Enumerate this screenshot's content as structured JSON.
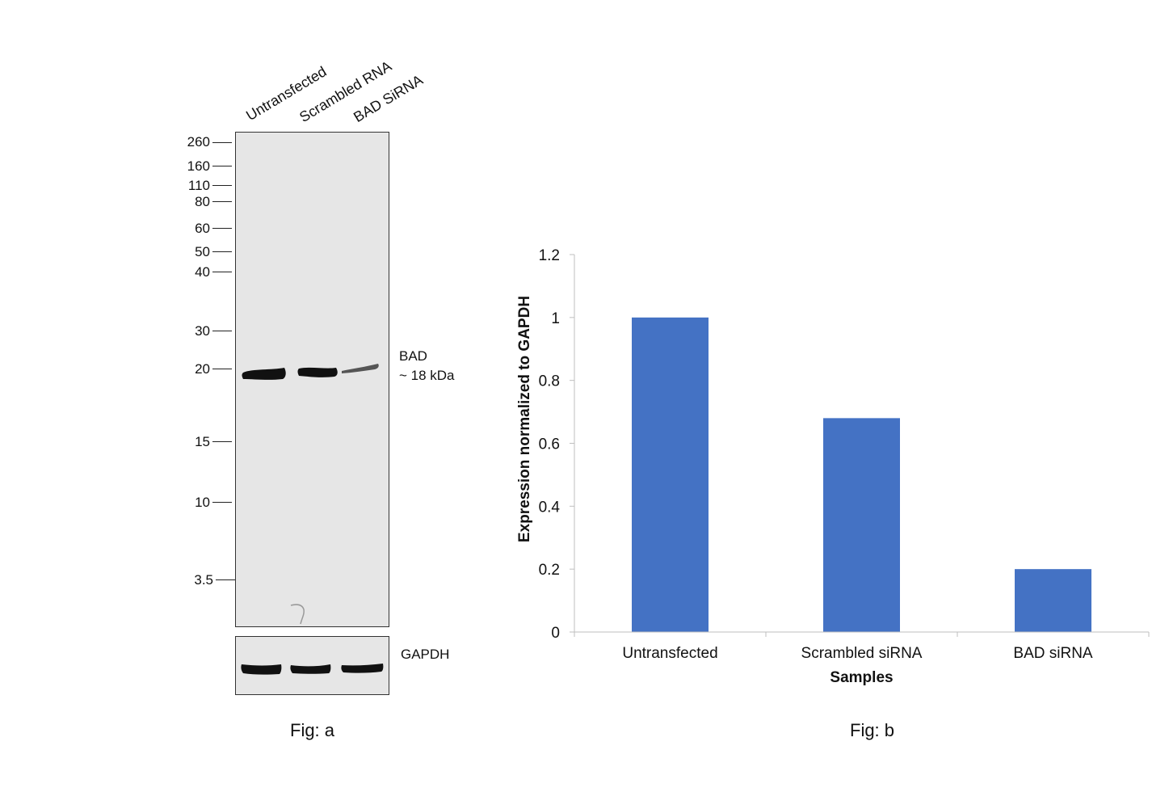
{
  "fig_a": {
    "lanes": [
      "Untransfected",
      "Scrambled RNA",
      "BAD SiRNA"
    ],
    "mw_markers": [
      "260",
      "160",
      "110",
      "80",
      "60",
      "50",
      "40",
      "30",
      "20",
      "15",
      "10",
      "3.5"
    ],
    "band_label_line1": "BAD",
    "band_label_line2": "~ 18 kDa",
    "loading_control": "GAPDH",
    "caption": "Fig: a"
  },
  "fig_b": {
    "caption": "Fig: b"
  },
  "chart_data": {
    "type": "bar",
    "categories": [
      "Untransfected",
      "Scrambled siRNA",
      "BAD siRNA"
    ],
    "values": [
      1.0,
      0.68,
      0.2
    ],
    "xlabel": "Samples",
    "ylabel": "Expression normalized to GAPDH",
    "ylim": [
      0,
      1.2
    ],
    "yticks": [
      "0",
      "0.2",
      "0.4",
      "0.6",
      "0.8",
      "1",
      "1.2"
    ],
    "grid": false,
    "bar_color": "#4472c4"
  }
}
